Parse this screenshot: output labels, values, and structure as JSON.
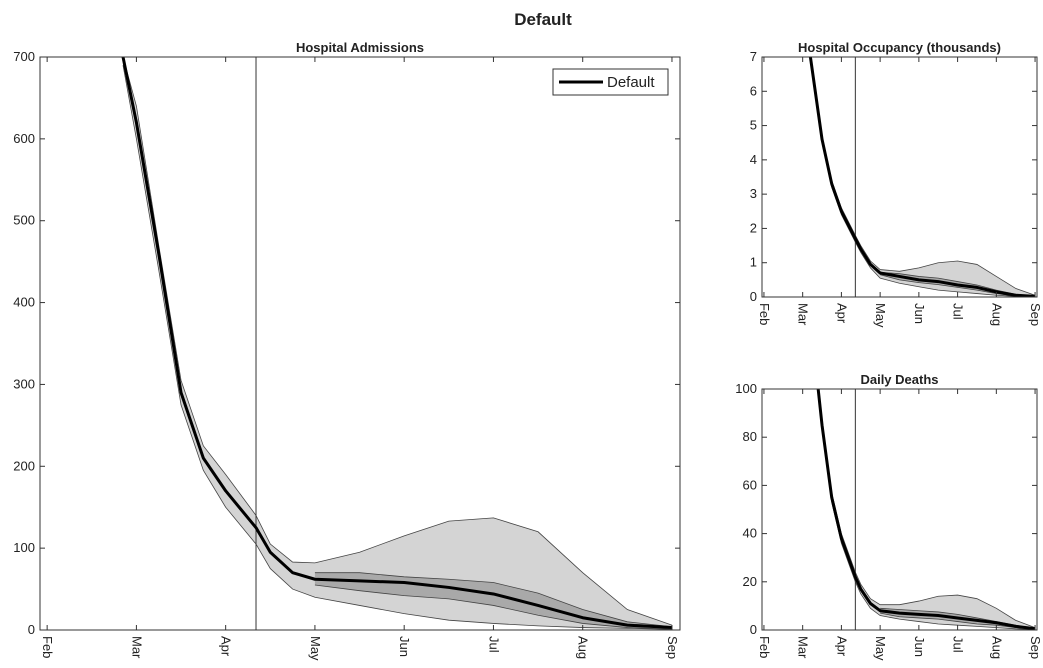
{
  "title": "Default",
  "chart_data": [
    {
      "type": "fan",
      "title": "Hospital Admissions",
      "x": [
        0.85,
        1,
        1.25,
        1.5,
        1.75,
        2,
        2.34,
        2.5,
        2.75,
        3,
        3.5,
        4,
        4.5,
        5,
        5.5,
        6,
        6.5,
        7
      ],
      "series": [
        {
          "name": "Default",
          "color": "#000000",
          "values": [
            700,
            620,
            460,
            290,
            210,
            170,
            125,
            95,
            70,
            62,
            60,
            58,
            52,
            44,
            30,
            15,
            6,
            3
          ]
        }
      ],
      "bands": [
        {
          "color": "#d4d4d4",
          "upper": [
            700,
            640,
            470,
            305,
            225,
            190,
            140,
            105,
            83,
            82,
            95,
            115,
            133,
            137,
            120,
            70,
            25,
            6
          ],
          "lower": [
            690,
            600,
            440,
            275,
            195,
            150,
            105,
            75,
            50,
            40,
            30,
            20,
            12,
            8,
            5,
            3,
            2,
            1
          ]
        },
        {
          "color": "#a9a9a9",
          "upper": [
            null,
            null,
            null,
            null,
            null,
            null,
            null,
            null,
            null,
            70,
            70,
            65,
            62,
            58,
            45,
            25,
            10,
            4
          ],
          "lower": [
            null,
            null,
            null,
            null,
            null,
            null,
            null,
            null,
            null,
            55,
            48,
            42,
            38,
            30,
            18,
            8,
            3,
            1
          ]
        }
      ],
      "vline": 2.34,
      "xlim": [
        -0.08,
        7.09
      ],
      "xticks": [
        {
          "value": 0,
          "label": "Feb"
        },
        {
          "value": 1,
          "label": "Mar"
        },
        {
          "value": 2,
          "label": "Apr"
        },
        {
          "value": 3,
          "label": "May"
        },
        {
          "value": 4,
          "label": "Jun"
        },
        {
          "value": 5,
          "label": "Jul"
        },
        {
          "value": 6,
          "label": "Aug"
        },
        {
          "value": 7,
          "label": "Sep"
        }
      ],
      "ylim": [
        0,
        700
      ],
      "yticks": [
        0,
        100,
        200,
        300,
        400,
        500,
        600,
        700
      ],
      "legend": "upper right"
    },
    {
      "type": "fan",
      "title": "Hospital Occupancy (thousands)",
      "x": [
        1.2,
        1.5,
        1.75,
        2,
        2.36,
        2.5,
        2.75,
        3,
        3.5,
        4,
        4.5,
        5,
        5.5,
        6,
        6.5,
        7
      ],
      "series": [
        {
          "color": "#000000",
          "values": [
            7,
            4.6,
            3.3,
            2.5,
            1.7,
            1.4,
            0.95,
            0.7,
            0.6,
            0.5,
            0.45,
            0.35,
            0.28,
            0.15,
            0.05,
            0.02
          ]
        }
      ],
      "bands": [
        {
          "color": "#d4d4d4",
          "upper": [
            7,
            4.7,
            3.4,
            2.6,
            1.8,
            1.5,
            1.05,
            0.8,
            0.75,
            0.85,
            1.0,
            1.05,
            0.95,
            0.6,
            0.25,
            0.05
          ],
          "lower": [
            6.9,
            4.5,
            3.2,
            2.4,
            1.6,
            1.3,
            0.85,
            0.55,
            0.4,
            0.3,
            0.2,
            0.15,
            0.1,
            0.05,
            0.02,
            0.01
          ]
        },
        {
          "color": "#a9a9a9",
          "upper": [
            null,
            null,
            null,
            null,
            null,
            null,
            null,
            0.72,
            0.68,
            0.6,
            0.55,
            0.45,
            0.35,
            0.2,
            0.08,
            0.03
          ],
          "lower": [
            null,
            null,
            null,
            null,
            null,
            null,
            null,
            0.65,
            0.5,
            0.42,
            0.36,
            0.28,
            0.2,
            0.1,
            0.03,
            0.01
          ]
        }
      ],
      "vline": 2.36,
      "xlim": [
        -0.05,
        7.05
      ],
      "xticks": [
        {
          "value": 0,
          "label": "Feb"
        },
        {
          "value": 1,
          "label": "Mar"
        },
        {
          "value": 2,
          "label": "Apr"
        },
        {
          "value": 3,
          "label": "May"
        },
        {
          "value": 4,
          "label": "Jun"
        },
        {
          "value": 5,
          "label": "Jul"
        },
        {
          "value": 6,
          "label": "Aug"
        },
        {
          "value": 7,
          "label": "Sep"
        }
      ],
      "ylim": [
        0,
        7
      ],
      "yticks": [
        0,
        1,
        2,
        3,
        4,
        5,
        6,
        7
      ]
    },
    {
      "type": "fan",
      "title": "Daily Deaths",
      "x": [
        1.4,
        1.5,
        1.75,
        2,
        2.36,
        2.5,
        2.75,
        3,
        3.5,
        4,
        4.5,
        5,
        5.5,
        6,
        6.5,
        7
      ],
      "series": [
        {
          "color": "#000000",
          "values": [
            100,
            85,
            55,
            38,
            22,
            17,
            11,
            8,
            7,
            6.5,
            6,
            5,
            4,
            3,
            1.5,
            0.5
          ]
        }
      ],
      "bands": [
        {
          "color": "#d4d4d4",
          "upper": [
            100,
            87,
            57,
            40,
            24,
            19,
            13,
            10.5,
            10.5,
            12,
            14,
            14.5,
            13,
            9,
            4,
            1
          ],
          "lower": [
            98,
            83,
            53,
            36,
            20,
            15,
            9,
            6,
            4.5,
            3.5,
            2.5,
            2,
            1.5,
            1,
            0.5,
            0.2
          ]
        },
        {
          "color": "#a9a9a9",
          "upper": [
            null,
            null,
            null,
            null,
            null,
            null,
            null,
            9,
            8.5,
            8,
            7.5,
            6.5,
            5,
            3.5,
            2,
            0.6
          ],
          "lower": [
            null,
            null,
            null,
            null,
            null,
            null,
            null,
            7,
            5.5,
            5,
            4.5,
            3.5,
            2.5,
            2,
            1,
            0.3
          ]
        }
      ],
      "vline": 2.36,
      "xlim": [
        -0.05,
        7.05
      ],
      "xticks": [
        {
          "value": 0,
          "label": "Feb"
        },
        {
          "value": 1,
          "label": "Mar"
        },
        {
          "value": 2,
          "label": "Apr"
        },
        {
          "value": 3,
          "label": "May"
        },
        {
          "value": 4,
          "label": "Jun"
        },
        {
          "value": 5,
          "label": "Jul"
        },
        {
          "value": 6,
          "label": "Aug"
        },
        {
          "value": 7,
          "label": "Sep"
        }
      ],
      "ylim": [
        0,
        100
      ],
      "yticks": [
        0,
        20,
        40,
        60,
        80,
        100
      ]
    }
  ]
}
